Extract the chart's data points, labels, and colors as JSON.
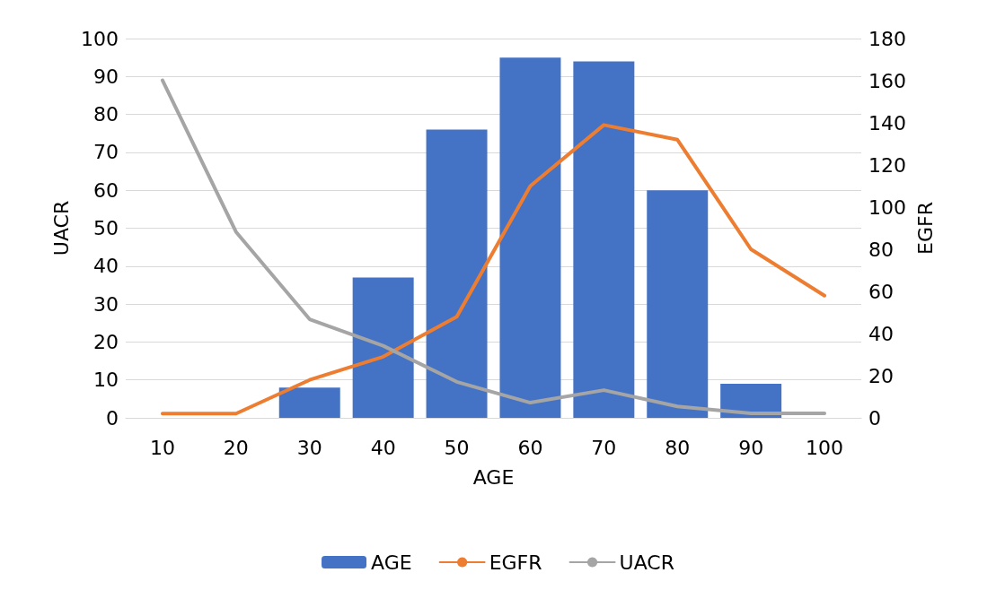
{
  "chart_data": {
    "type": "bar",
    "xlabel": "AGE",
    "ylabel": "UACR",
    "y2label": "EGFR",
    "categories": [
      "10",
      "20",
      "30",
      "40",
      "50",
      "60",
      "70",
      "80",
      "90",
      "100"
    ],
    "series": [
      {
        "name": "AGE",
        "color": "#4472c4",
        "values": [
          0,
          0,
          8,
          37,
          76,
          95,
          94,
          60,
          9,
          0
        ]
      },
      {
        "name": "EGFR",
        "type": "line",
        "axis": "y2",
        "color": "#ed7d31",
        "values": [
          2,
          2,
          18,
          29,
          48,
          110,
          139,
          132,
          80,
          58
        ]
      },
      {
        "name": "UACR",
        "type": "line",
        "color": "#a5a5a5",
        "values": [
          89,
          49,
          26,
          19,
          9.5,
          4,
          7.3,
          3,
          1.2,
          1.2
        ]
      }
    ],
    "ylim": [
      0,
      100
    ],
    "yticks": [
      0,
      10,
      20,
      30,
      40,
      50,
      60,
      70,
      80,
      90,
      100
    ],
    "y2lim": [
      0,
      180
    ],
    "y2ticks": [
      0,
      20,
      40,
      60,
      80,
      100,
      120,
      140,
      160,
      180
    ],
    "grid": "y",
    "legend": "bottom",
    "marker": "none"
  }
}
